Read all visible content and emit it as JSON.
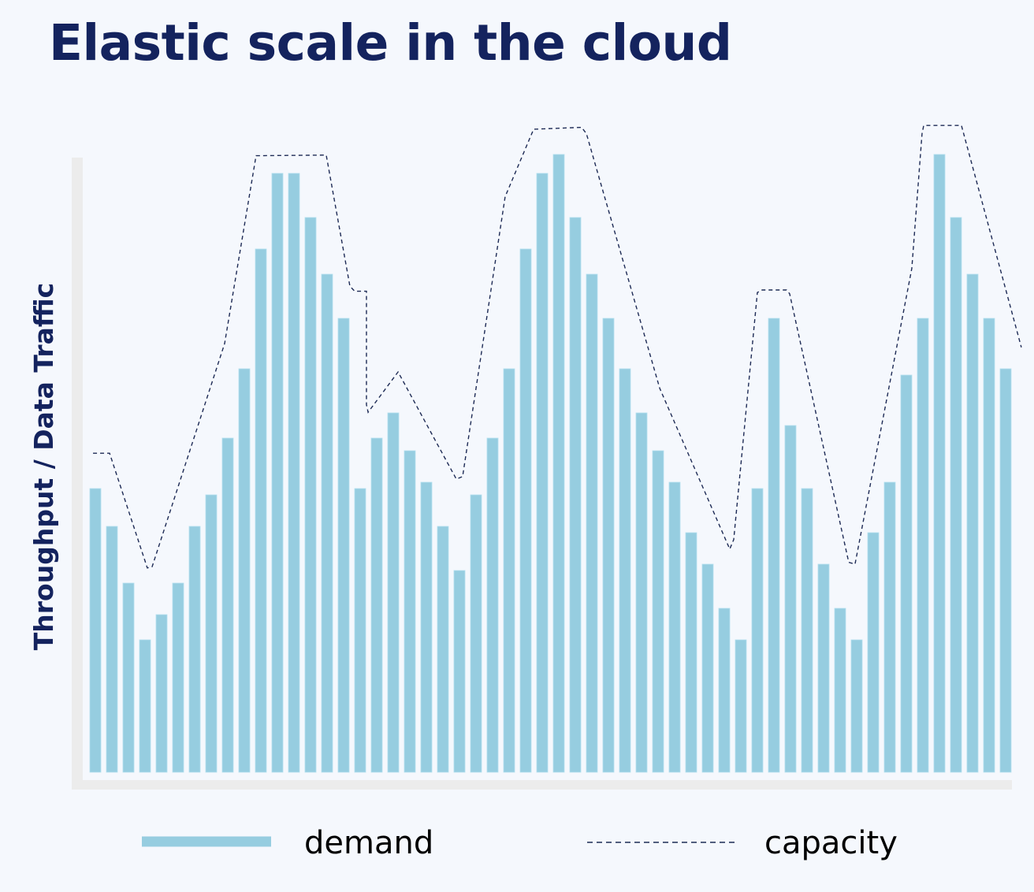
{
  "chart_data": {
    "type": "bar",
    "title": "Elastic scale in the cloud",
    "xlabel": "",
    "ylabel": "Throughput / Data Traffic",
    "ylim": [
      0,
      105
    ],
    "grid": false,
    "legend": {
      "position": "bottom",
      "entries": [
        "demand",
        "capacity"
      ]
    },
    "colors": {
      "demand": "#96cde0",
      "capacity": "#1d2a55",
      "title": "#14235e",
      "axis": "#ececec"
    },
    "series": [
      {
        "name": "demand",
        "type": "bar",
        "values": [
          45,
          39,
          30,
          21,
          25,
          30,
          39,
          44,
          53,
          64,
          83,
          95,
          95,
          88,
          79,
          72,
          45,
          53,
          57,
          51,
          46,
          39,
          32,
          44,
          53,
          64,
          83,
          95,
          98,
          88,
          79,
          72,
          64,
          57,
          51,
          46,
          38,
          33,
          26,
          21,
          45,
          72,
          55,
          45,
          33,
          26,
          21,
          38,
          46,
          63,
          72,
          98,
          88,
          79,
          72,
          64
        ]
      },
      {
        "name": "capacity",
        "type": "line",
        "style": "dashed",
        "points": [
          [
            -0.14,
            50.6
          ],
          [
            0.86,
            50.6
          ],
          [
            3.14,
            32.4
          ],
          [
            3.43,
            32.6
          ],
          [
            7.81,
            68
          ],
          [
            9.71,
            97.8
          ],
          [
            13.95,
            97.9
          ],
          [
            15.38,
            77.1
          ],
          [
            15.67,
            76.3
          ],
          [
            16.38,
            76.3
          ],
          [
            16.38,
            58.3
          ],
          [
            16.48,
            57.1
          ],
          [
            18.29,
            63.5
          ],
          [
            21.81,
            46.5
          ],
          [
            22.19,
            46.9
          ],
          [
            24.76,
            91.3
          ],
          [
            26.48,
            102
          ],
          [
            29.38,
            102.3
          ],
          [
            29.67,
            101.3
          ],
          [
            34.1,
            60.9
          ],
          [
            38.33,
            35.4
          ],
          [
            38.57,
            36.9
          ],
          [
            40,
            76.1
          ],
          [
            40.29,
            76.5
          ],
          [
            41.76,
            76.5
          ],
          [
            41.95,
            75.9
          ],
          [
            45.52,
            33.3
          ],
          [
            45.9,
            33
          ],
          [
            49.33,
            79.9
          ],
          [
            49.95,
            101.3
          ],
          [
            50.05,
            102.6
          ],
          [
            52.33,
            102.6
          ],
          [
            55.95,
            67.4
          ]
        ]
      }
    ]
  }
}
